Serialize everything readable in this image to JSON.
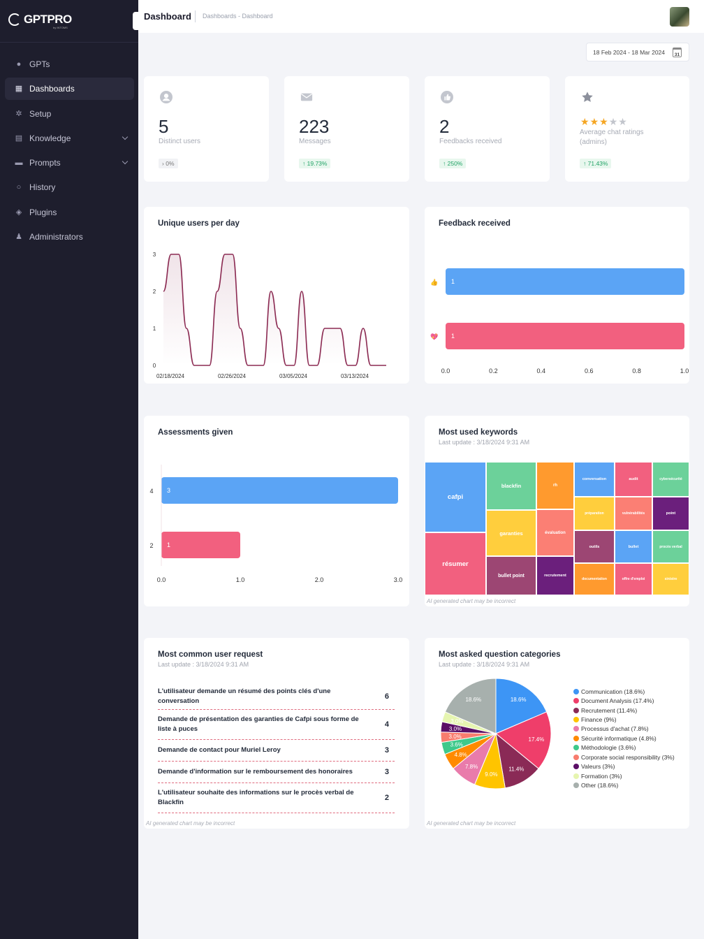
{
  "app": {
    "logo": "GPTPRO",
    "logo_sub": "by INTOMS"
  },
  "sidebar": {
    "items": [
      {
        "label": "GPTs",
        "icon": "robot-icon",
        "active": false,
        "expandable": false
      },
      {
        "label": "Dashboards",
        "icon": "dashboard-icon",
        "active": true,
        "expandable": false
      },
      {
        "label": "Setup",
        "icon": "gear-icon",
        "active": false,
        "expandable": false
      },
      {
        "label": "Knowledge",
        "icon": "document-icon",
        "active": false,
        "expandable": true
      },
      {
        "label": "Prompts",
        "icon": "message-icon",
        "active": false,
        "expandable": true
      },
      {
        "label": "History",
        "icon": "search-icon",
        "active": false,
        "expandable": false
      },
      {
        "label": "Plugins",
        "icon": "layers-icon",
        "active": false,
        "expandable": false
      },
      {
        "label": "Administrators",
        "icon": "user-icon",
        "active": false,
        "expandable": false
      }
    ]
  },
  "header": {
    "title": "Dashboard",
    "breadcrumb": "Dashboards  -  Dashboard"
  },
  "date_range": {
    "label": "18 Feb 2024 - 18 Mar 2024",
    "calendar_day": "31"
  },
  "stats": [
    {
      "value": "5",
      "label": "Distinct users",
      "badge": "0%",
      "trend": "flat",
      "icon": "user-circle-icon"
    },
    {
      "value": "223",
      "label": "Messages",
      "badge": "19.73%",
      "trend": "up",
      "icon": "envelope-icon"
    },
    {
      "value": "2",
      "label": "Feedbacks received",
      "badge": "250%",
      "trend": "up",
      "icon": "thumbs-up-icon"
    },
    {
      "value": "",
      "label": "Average chat ratings (admins)",
      "badge": "71.43%",
      "trend": "up",
      "icon": "star-icon",
      "stars": 3,
      "stars_max": 5
    }
  ],
  "colors": {
    "blue": "#5ba4f5",
    "pink": "#f2607f",
    "line": "#8b2a52"
  },
  "chart_data": [
    {
      "id": "unique_users",
      "type": "line",
      "title": "Unique users per day",
      "x": [
        "02/18/2024",
        "02/19/2024",
        "02/20/2024",
        "02/21/2024",
        "02/22/2024",
        "02/23/2024",
        "02/24/2024",
        "02/25/2024",
        "02/26/2024",
        "02/27/2024",
        "02/28/2024",
        "02/29/2024",
        "03/01/2024",
        "03/02/2024",
        "03/03/2024",
        "03/04/2024",
        "03/05/2024",
        "03/06/2024",
        "03/07/2024",
        "03/08/2024",
        "03/09/2024",
        "03/10/2024",
        "03/11/2024",
        "03/12/2024",
        "03/13/2024",
        "03/14/2024",
        "03/15/2024",
        "03/16/2024",
        "03/17/2024",
        "03/18/2024"
      ],
      "values": [
        2,
        3,
        3,
        1,
        0,
        0,
        0,
        2,
        3,
        3,
        1,
        0,
        0,
        0,
        2,
        1,
        0,
        0,
        2,
        0,
        0,
        1,
        1,
        1,
        0,
        0,
        1,
        0,
        0,
        0
      ],
      "x_ticks": [
        "02/18/2024",
        "02/26/2024",
        "03/05/2024",
        "03/13/2024"
      ],
      "y_ticks": [
        "0",
        "1",
        "2",
        "3"
      ],
      "ylim": [
        0,
        3
      ]
    },
    {
      "id": "feedback",
      "type": "bar",
      "orientation": "horizontal",
      "title": "Feedback received",
      "categories": [
        "thumbs-up",
        "heart"
      ],
      "category_icons": [
        "👍",
        "💖"
      ],
      "values": [
        1,
        1
      ],
      "value_labels": [
        "1",
        "1"
      ],
      "colors": [
        "#5ba4f5",
        "#f2607f"
      ],
      "x_ticks": [
        "0.0",
        "0.2",
        "0.4",
        "0.6",
        "0.8",
        "1.0"
      ],
      "xlim": [
        0,
        1
      ]
    },
    {
      "id": "assessments",
      "type": "bar",
      "orientation": "horizontal",
      "title": "Assessments given",
      "categories": [
        "4",
        "2"
      ],
      "values": [
        3,
        1
      ],
      "value_labels": [
        "3",
        "1"
      ],
      "colors": [
        "#5ba4f5",
        "#f2607f"
      ],
      "x_ticks": [
        "0.0",
        "1.0",
        "2.0",
        "3.0"
      ],
      "xlim": [
        0,
        3
      ]
    },
    {
      "id": "pie",
      "type": "pie",
      "title": "Most asked question categories",
      "labels": [
        "Communication (18.6%)",
        "Document Analysis (17.4%)",
        "Recrutement (11.4%)",
        "Finance (9%)",
        "Processus d'achat (7.8%)",
        "Sécurité informatique (4.8%)",
        "Méthodologie (3.6%)",
        "Corporate social responsibility (3%)",
        "Valeurs (3%)",
        "Formation (3%)",
        "Other (18.6%)"
      ],
      "values": [
        18.6,
        17.4,
        11.4,
        9.0,
        7.8,
        4.8,
        3.6,
        3.0,
        3.0,
        3.0,
        18.6
      ],
      "slice_labels": [
        "18.6%",
        "17.4%",
        "11.4%",
        "9.0%",
        "7.8%",
        "4.8%",
        "3.6%",
        "3.0%",
        "3.0%",
        "3.0%",
        "18.6%"
      ],
      "colors": [
        "#3d95f5",
        "#ef3e6a",
        "#8a2a56",
        "#ffc400",
        "#e97bab",
        "#ff8a00",
        "#3ec98b",
        "#f87c6e",
        "#5b0f66",
        "#e6f5b0",
        "#a7b0ad"
      ]
    }
  ],
  "keywords": {
    "title": "Most used keywords",
    "subtitle": "Last update : 3/18/2024 9:31 AM",
    "footnote": "AI generated chart may be incorrect",
    "cells": [
      {
        "label": "cafpi",
        "color": "#5ba4f5",
        "size": 9.5
      },
      {
        "label": "résumer",
        "color": "#f2607f",
        "size": 9.5
      },
      {
        "label": "blackfin",
        "color": "#6cd19a",
        "size": 7.5
      },
      {
        "label": "garanties",
        "color": "#ffce3d",
        "size": 7.5
      },
      {
        "label": "bullet point",
        "color": "#9c4673",
        "size": 7
      },
      {
        "label": "rh",
        "color": "#ff9a2e",
        "size": 6
      },
      {
        "label": "évaluation",
        "color": "#fb7f74",
        "size": 6
      },
      {
        "label": "recrutement",
        "color": "#6b1f7c",
        "size": 5.5
      },
      {
        "label": "conversation",
        "color": "#5ba4f5",
        "size": 5.5
      },
      {
        "label": "audit",
        "color": "#f2607f",
        "size": 5.5
      },
      {
        "label": "cybersécurité",
        "color": "#6cd19a",
        "size": 5
      },
      {
        "label": "préparation",
        "color": "#ffce3d",
        "size": 5
      },
      {
        "label": "vulnérabilités",
        "color": "#fb7f74",
        "size": 5
      },
      {
        "label": "point",
        "color": "#6b1f7c",
        "size": 5.5
      },
      {
        "label": "outils",
        "color": "#9c4673",
        "size": 5.5
      },
      {
        "label": "bullet",
        "color": "#5ba4f5",
        "size": 5.5
      },
      {
        "label": "procès verbal",
        "color": "#6cd19a",
        "size": 5
      },
      {
        "label": "documentation",
        "color": "#ff9a2e",
        "size": 5
      },
      {
        "label": "offre d'emploi",
        "color": "#f2607f",
        "size": 5
      },
      {
        "label": "sinistre",
        "color": "#ffce3d",
        "size": 5
      }
    ]
  },
  "requests": {
    "title": "Most common user request",
    "subtitle": "Last update : 3/18/2024 9:31 AM",
    "footnote": "AI generated chart may be incorrect",
    "rows": [
      {
        "text": "L'utilisateur demande un résumé des points clés d'une conversation",
        "count": "6"
      },
      {
        "text": "Demande de présentation des garanties de Cafpi sous forme de liste à puces",
        "count": "4"
      },
      {
        "text": "Demande de contact pour Muriel Leroy",
        "count": "3"
      },
      {
        "text": "Demande d'information sur le remboursement des honoraires",
        "count": "3"
      },
      {
        "text": "L'utilisateur souhaite des informations sur le procès verbal de Blackfin",
        "count": "2"
      }
    ]
  },
  "pie_card": {
    "subtitle": "Last update : 3/18/2024 9:31 AM",
    "footnote": "AI generated chart may be incorrect"
  }
}
